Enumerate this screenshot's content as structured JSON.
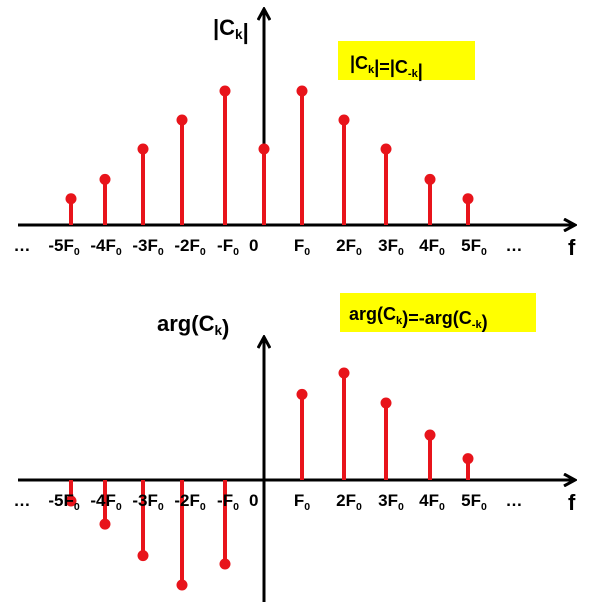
{
  "chart_data": [
    {
      "type": "stem",
      "title": "|Ck|",
      "annotation": "|Ck|=|C-k|",
      "xlabel": "f",
      "ylabel": "|Ck|",
      "x_ticks": [
        "...",
        "-5F0",
        "-4F0",
        "-3F0",
        "-2F0",
        "-F0",
        "0",
        "F0",
        "2F0",
        "3F0",
        "4F0",
        "5F0",
        "..."
      ],
      "x": [
        -5,
        -4,
        -3,
        -2,
        -1,
        0,
        1,
        2,
        3,
        4,
        5
      ],
      "values": [
        0.19,
        0.33,
        0.55,
        0.76,
        0.97,
        0.55,
        0.97,
        0.76,
        0.55,
        0.33,
        0.19
      ],
      "ylim": [
        0,
        1.35
      ],
      "grid": false,
      "colors": {
        "stem": "#e8141b",
        "highlight": "#ffff00",
        "axis": "#000000"
      }
    },
    {
      "type": "stem",
      "title": "arg(Ck)",
      "annotation": "arg(Ck)=-arg(C-k)",
      "xlabel": "f",
      "ylabel": "arg(Ck)",
      "x_ticks": [
        "...",
        "-5F0",
        "-4F0",
        "-3F0",
        "-2F0",
        "-F0",
        "0",
        "F0",
        "2F0",
        "3F0",
        "4F0",
        "5F0",
        "..."
      ],
      "x": [
        -5,
        -4,
        -3,
        -2,
        -1,
        1,
        2,
        3,
        4,
        5
      ],
      "values": [
        -0.2,
        -0.42,
        -0.72,
        -1.0,
        -0.8,
        0.8,
        1.0,
        0.72,
        0.42,
        0.2
      ],
      "ylim": [
        -1.2,
        1.42
      ],
      "grid": false,
      "colors": {
        "stem": "#e8141b",
        "highlight": "#ffff00",
        "axis": "#000000"
      }
    }
  ]
}
